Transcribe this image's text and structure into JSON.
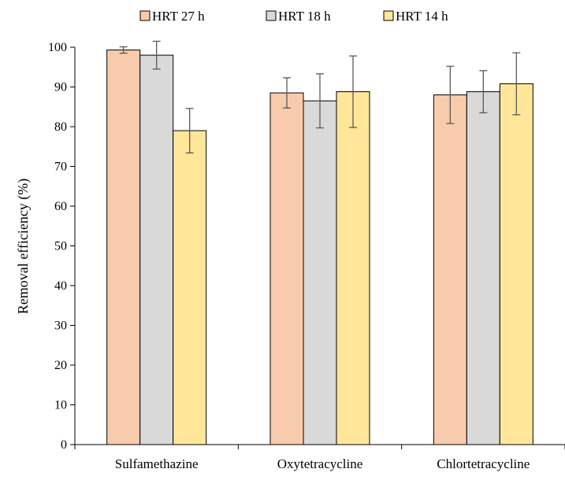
{
  "chart_data": {
    "type": "bar",
    "title": "",
    "xlabel": "",
    "ylabel": "Removal efficiency (%)",
    "ylim": [
      0,
      100
    ],
    "yticks": [
      0,
      10,
      20,
      30,
      40,
      50,
      60,
      70,
      80,
      90,
      100
    ],
    "categories": [
      "Sulfamethazine",
      "Oxytetracycline",
      "Chlortetracycline"
    ],
    "legend_position": "top",
    "grid": false,
    "series": [
      {
        "name": "HRT 27 h",
        "color": "#F8CBAD",
        "values": [
          99.3,
          88.5,
          88.0
        ],
        "errors": [
          0.8,
          3.8,
          7.2
        ]
      },
      {
        "name": "HRT 18 h",
        "color": "#D9D9D9",
        "values": [
          98.0,
          86.5,
          88.8
        ],
        "errors": [
          3.5,
          6.8,
          5.3
        ]
      },
      {
        "name": "HRT 14 h",
        "color": "#FFE699",
        "values": [
          79.0,
          88.8,
          90.8
        ],
        "errors": [
          5.6,
          9.0,
          7.8
        ]
      }
    ]
  }
}
